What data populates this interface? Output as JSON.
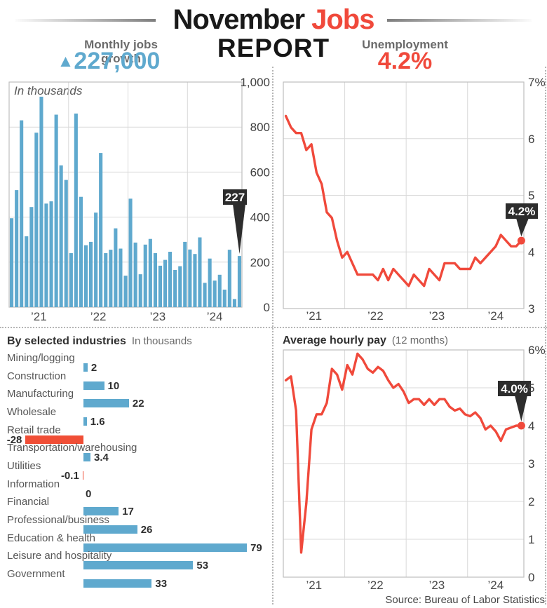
{
  "header": {
    "title_black": "November",
    "title_red": "Jobs",
    "line2": "REPORT"
  },
  "left_stat": {
    "label": "Monthly jobs growth",
    "arrow": "▲",
    "value": "227,000"
  },
  "right_stat": {
    "label": "Unemployment",
    "value": "4.2%"
  },
  "source": "Source: Bureau of Labor Statistics",
  "colors": {
    "blue": "#5FA9CE",
    "red": "#F0493B",
    "bar_red": "#F04E36",
    "dark": "#2D2D2D",
    "grid": "#D9D9D9",
    "border": "#BFBFBF",
    "tick_text": "#3F3F3F",
    "year_text": "#4A4A4A"
  },
  "chart_data": [
    {
      "id": "jobs_monthly",
      "type": "bar",
      "title": "In thousands",
      "x_range": "Jan 2021 – Nov 2024, monthly",
      "xtick_labels": [
        "’21",
        "’22",
        "’23",
        "’24"
      ],
      "ylim": [
        0,
        1000
      ],
      "ytick_values": [
        0,
        200,
        400,
        600,
        800,
        1000
      ],
      "ytick_labels": [
        "0",
        "200",
        "400",
        "600",
        "800",
        "1,000"
      ],
      "callout": "227",
      "values": [
        395,
        520,
        830,
        315,
        445,
        775,
        935,
        460,
        470,
        855,
        630,
        565,
        240,
        860,
        490,
        275,
        290,
        420,
        685,
        240,
        255,
        350,
        260,
        140,
        482,
        287,
        146,
        278,
        303,
        240,
        184,
        210,
        246,
        165,
        182,
        290,
        256,
        236,
        310,
        108,
        216,
        118,
        144,
        78,
        255,
        36,
        227
      ]
    },
    {
      "id": "unemployment",
      "type": "line",
      "title": "Unemployment",
      "x_range": "Jan 2021 – Nov 2024, monthly",
      "xtick_labels": [
        "’21",
        "’22",
        "’23",
        "’24"
      ],
      "ylim": [
        3,
        7
      ],
      "ytick_values": [
        3,
        4,
        5,
        6,
        7
      ],
      "ytick_labels": [
        "3",
        "4",
        "5",
        "6",
        "7%"
      ],
      "callout": "4.2%",
      "values": [
        6.4,
        6.2,
        6.1,
        6.1,
        5.8,
        5.9,
        5.4,
        5.2,
        4.7,
        4.6,
        4.2,
        3.9,
        4.0,
        3.8,
        3.6,
        3.6,
        3.6,
        3.6,
        3.5,
        3.7,
        3.5,
        3.7,
        3.6,
        3.5,
        3.4,
        3.6,
        3.5,
        3.4,
        3.7,
        3.6,
        3.5,
        3.8,
        3.8,
        3.8,
        3.7,
        3.7,
        3.7,
        3.9,
        3.8,
        3.9,
        4.0,
        4.1,
        4.3,
        4.2,
        4.1,
        4.1,
        4.2
      ]
    },
    {
      "id": "industries",
      "type": "bar_horizontal",
      "title": "By selected industries",
      "subtitle": "In thousands",
      "categories": [
        "Mining/logging",
        "Construction",
        "Manufacturing",
        "Wholesale",
        "Retail trade",
        "Transportation/warehousing",
        "Utilities",
        "Information",
        "Financial",
        "Professional/business",
        "Education & health",
        "Leisure and hospitality",
        "Government"
      ],
      "values": [
        2,
        10,
        22,
        1.6,
        -28,
        3.4,
        -0.1,
        0,
        17,
        26,
        79,
        53,
        33
      ],
      "value_labels": [
        "2",
        "10",
        "22",
        "1.6",
        "-28",
        "3.4",
        "-0.1",
        "0",
        "17",
        "26",
        "79",
        "53",
        "33"
      ]
    },
    {
      "id": "hourly_pay",
      "type": "line",
      "title": "Average hourly pay",
      "subtitle": "(12 months)",
      "x_range": "Jan 2021 – Nov 2024, monthly",
      "xtick_labels": [
        "’21",
        "’22",
        "’23",
        "’24"
      ],
      "ylim": [
        0,
        6
      ],
      "ytick_values": [
        0,
        1,
        2,
        3,
        4,
        5,
        6
      ],
      "ytick_labels": [
        "0",
        "1",
        "2",
        "3",
        "4",
        "5",
        "6%"
      ],
      "callout": "4.0%",
      "values": [
        5.2,
        5.3,
        4.4,
        0.65,
        1.95,
        3.9,
        4.3,
        4.3,
        4.6,
        5.5,
        5.35,
        4.95,
        5.6,
        5.35,
        5.9,
        5.75,
        5.5,
        5.4,
        5.55,
        5.45,
        5.2,
        5.0,
        5.1,
        4.9,
        4.6,
        4.7,
        4.7,
        4.55,
        4.7,
        4.55,
        4.7,
        4.7,
        4.5,
        4.4,
        4.45,
        4.3,
        4.25,
        4.35,
        4.2,
        3.9,
        4.0,
        3.85,
        3.6,
        3.9,
        3.95,
        4.0,
        4.0
      ]
    }
  ]
}
